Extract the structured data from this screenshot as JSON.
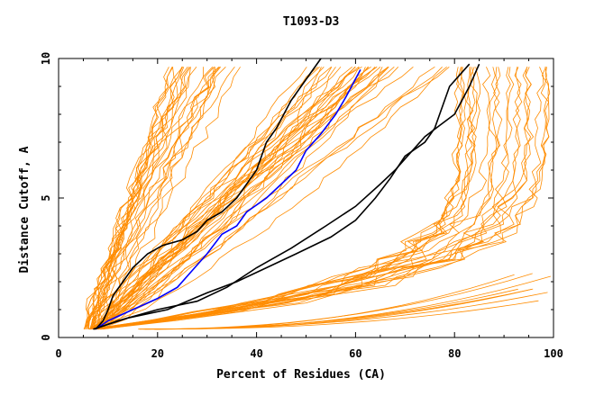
{
  "chart_data": {
    "type": "line",
    "title": "T1093-D3",
    "xlabel": "Percent of Residues (CA)",
    "ylabel": "Distance Cutoff, A",
    "xlim": [
      0,
      100
    ],
    "ylim": [
      0,
      10
    ],
    "x_ticks": [
      0,
      20,
      40,
      60,
      80,
      100
    ],
    "y_ticks": [
      0,
      5,
      10
    ],
    "grid": false,
    "legend": "none",
    "colors": {
      "orange": "#ff8c00",
      "black": "#000000",
      "blue": "#0000ff",
      "frame": "#000000"
    },
    "series_groups": {
      "steep_orange": {
        "count": 24,
        "x_start": [
          5,
          8
        ],
        "x_end_at_top": [
          22,
          38
        ],
        "y_end": 9.7
      },
      "mid_orange": {
        "count": 34,
        "x_start": [
          6,
          9
        ],
        "x_end_at_top": [
          48,
          80
        ],
        "y_end": 9.7
      },
      "wide_orange": {
        "count": 24,
        "x_start": [
          6,
          9
        ],
        "x_end_at_top": [
          78,
          100
        ],
        "y_end": 9.7
      },
      "flat_orange": {
        "count": 8,
        "x_start": [
          16,
          20
        ],
        "x_end": [
          91,
          100
        ],
        "y_end": [
          1.3,
          2.3
        ]
      }
    },
    "series": [
      {
        "color": "#000000",
        "points": [
          [
            7.5,
            0.3
          ],
          [
            9,
            0.6
          ],
          [
            10,
            1.0
          ],
          [
            11,
            1.5
          ],
          [
            13,
            2.0
          ],
          [
            15,
            2.5
          ],
          [
            18,
            3.0
          ],
          [
            21,
            3.3
          ],
          [
            25,
            3.5
          ],
          [
            28,
            3.8
          ],
          [
            30,
            4.2
          ],
          [
            33,
            4.5
          ],
          [
            36,
            5.0
          ],
          [
            40,
            6.0
          ],
          [
            42,
            7.0
          ],
          [
            44,
            7.5
          ],
          [
            47,
            8.5
          ],
          [
            49,
            9.0
          ],
          [
            53,
            10.0
          ]
        ]
      },
      {
        "color": "#0000ff",
        "points": [
          [
            7.5,
            0.3
          ],
          [
            10,
            0.6
          ],
          [
            15,
            1.0
          ],
          [
            20,
            1.4
          ],
          [
            24,
            1.8
          ],
          [
            27,
            2.4
          ],
          [
            30,
            3.0
          ],
          [
            33,
            3.7
          ],
          [
            36,
            4.0
          ],
          [
            38,
            4.5
          ],
          [
            42,
            5.0
          ],
          [
            45,
            5.5
          ],
          [
            48,
            6.0
          ],
          [
            50,
            6.7
          ],
          [
            53,
            7.3
          ],
          [
            56,
            8.0
          ],
          [
            58,
            8.6
          ],
          [
            61,
            9.6
          ]
        ]
      },
      {
        "color": "#000000",
        "points": [
          [
            7.2,
            0.3
          ],
          [
            12,
            0.6
          ],
          [
            20,
            1.0
          ],
          [
            28,
            1.3
          ],
          [
            34,
            1.8
          ],
          [
            40,
            2.5
          ],
          [
            47,
            3.2
          ],
          [
            54,
            4.0
          ],
          [
            60,
            4.7
          ],
          [
            65,
            5.5
          ],
          [
            68,
            6.0
          ],
          [
            71,
            6.6
          ],
          [
            74,
            7.2
          ],
          [
            77,
            7.6
          ],
          [
            80,
            8.0
          ],
          [
            83,
            9.0
          ],
          [
            85,
            9.8
          ]
        ]
      },
      {
        "color": "#000000",
        "points": [
          [
            7.0,
            0.3
          ],
          [
            14,
            0.7
          ],
          [
            22,
            1.0
          ],
          [
            30,
            1.6
          ],
          [
            36,
            2.0
          ],
          [
            42,
            2.5
          ],
          [
            48,
            3.0
          ],
          [
            55,
            3.6
          ],
          [
            60,
            4.2
          ],
          [
            64,
            5.0
          ],
          [
            67,
            5.7
          ],
          [
            70,
            6.5
          ],
          [
            74,
            7.0
          ],
          [
            76,
            7.5
          ],
          [
            77,
            8.0
          ],
          [
            79,
            9.0
          ],
          [
            83,
            9.8
          ]
        ]
      }
    ]
  }
}
